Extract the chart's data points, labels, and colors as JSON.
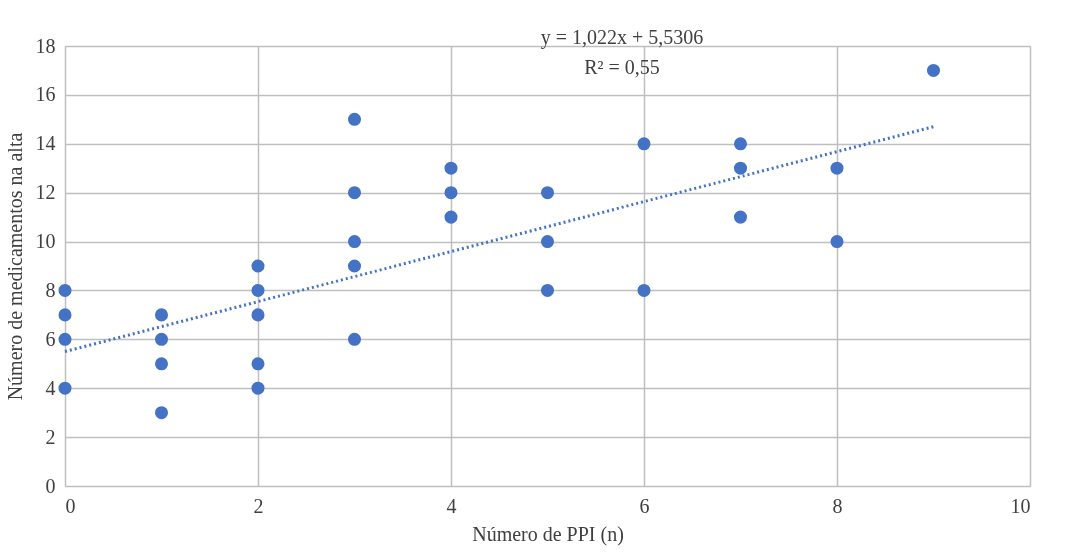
{
  "chart_data": {
    "type": "scatter",
    "xlabel": "Número de PPI (n)",
    "ylabel": "Número de medicamentos na alta",
    "annotations": [
      "y = 1,022x + 5,5306",
      "R² = 0,55"
    ],
    "xlim": [
      0,
      10
    ],
    "xticks": [
      0,
      2,
      4,
      6,
      8,
      10
    ],
    "ylim": [
      0,
      18
    ],
    "yticks": [
      0,
      2,
      4,
      6,
      8,
      10,
      12,
      14,
      16,
      18
    ],
    "grid": true,
    "series": [
      {
        "color": "#4472c4",
        "marker": "circle",
        "x": [
          0,
          0,
          0,
          0,
          1,
          1,
          1,
          1,
          2,
          2,
          2,
          2,
          2,
          3,
          3,
          3,
          3,
          3,
          4,
          4,
          4,
          5,
          5,
          5,
          6,
          6,
          7,
          7,
          7,
          8,
          8,
          9
        ],
        "values": [
          8,
          7,
          6,
          4,
          7,
          6,
          5,
          3,
          9,
          8,
          7,
          5,
          4,
          15,
          12,
          10,
          9,
          6,
          13,
          12,
          11,
          12,
          10,
          8,
          14,
          8,
          14,
          13,
          11,
          13,
          10,
          17
        ]
      },
      {
        "type": "line",
        "color": "#4472c4",
        "line_style": "dotted",
        "marker": "none",
        "x": [
          0,
          9
        ],
        "values": [
          5.5,
          14.7
        ]
      }
    ]
  }
}
